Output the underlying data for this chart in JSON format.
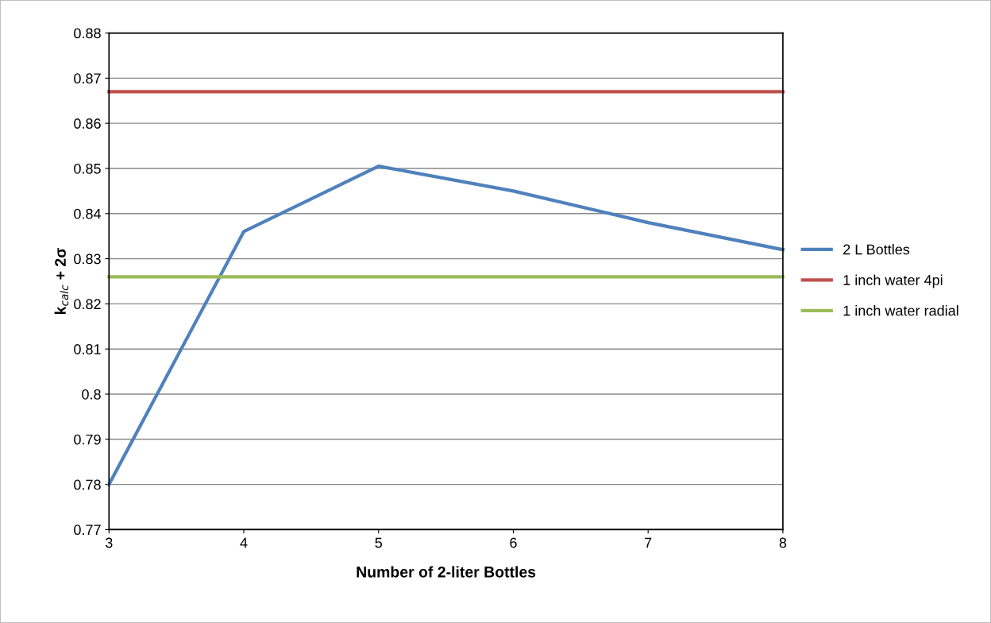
{
  "chart_data": {
    "type": "line",
    "xlabel": "Number of 2-liter Bottles",
    "ylabel": "k$_{calc}$ + 2σ",
    "x": [
      3,
      4,
      5,
      6,
      7,
      8
    ],
    "series": [
      {
        "name": "2 L Bottles",
        "color": "#4f81bd",
        "values": [
          0.78,
          0.836,
          0.8505,
          0.845,
          0.838,
          0.832
        ]
      },
      {
        "name": "1 inch water 4pi",
        "color": "#c0504d",
        "values": [
          0.867,
          0.867,
          0.867,
          0.867,
          0.867,
          0.867
        ]
      },
      {
        "name": "1 inch water radial",
        "color": "#9bbb59",
        "values": [
          0.826,
          0.826,
          0.826,
          0.826,
          0.826,
          0.826
        ]
      }
    ],
    "xlim": [
      3,
      8
    ],
    "xticks": [
      3,
      4,
      5,
      6,
      7,
      8
    ],
    "ylim": [
      0.77,
      0.88
    ],
    "yticks": [
      {
        "value": 0.77,
        "label": "0.77"
      },
      {
        "value": 0.78,
        "label": "0.78"
      },
      {
        "value": 0.79,
        "label": "0.79"
      },
      {
        "value": 0.8,
        "label": "0.8"
      },
      {
        "value": 0.81,
        "label": "0.81"
      },
      {
        "value": 0.82,
        "label": "0.82"
      },
      {
        "value": 0.83,
        "label": "0.83"
      },
      {
        "value": 0.84,
        "label": "0.84"
      },
      {
        "value": 0.85,
        "label": "0.85"
      },
      {
        "value": 0.86,
        "label": "0.86"
      },
      {
        "value": 0.87,
        "label": "0.87"
      },
      {
        "value": 0.88,
        "label": "0.88"
      }
    ],
    "grid": "y",
    "legend": "right",
    "marker": "none",
    "line_style": "solid"
  }
}
